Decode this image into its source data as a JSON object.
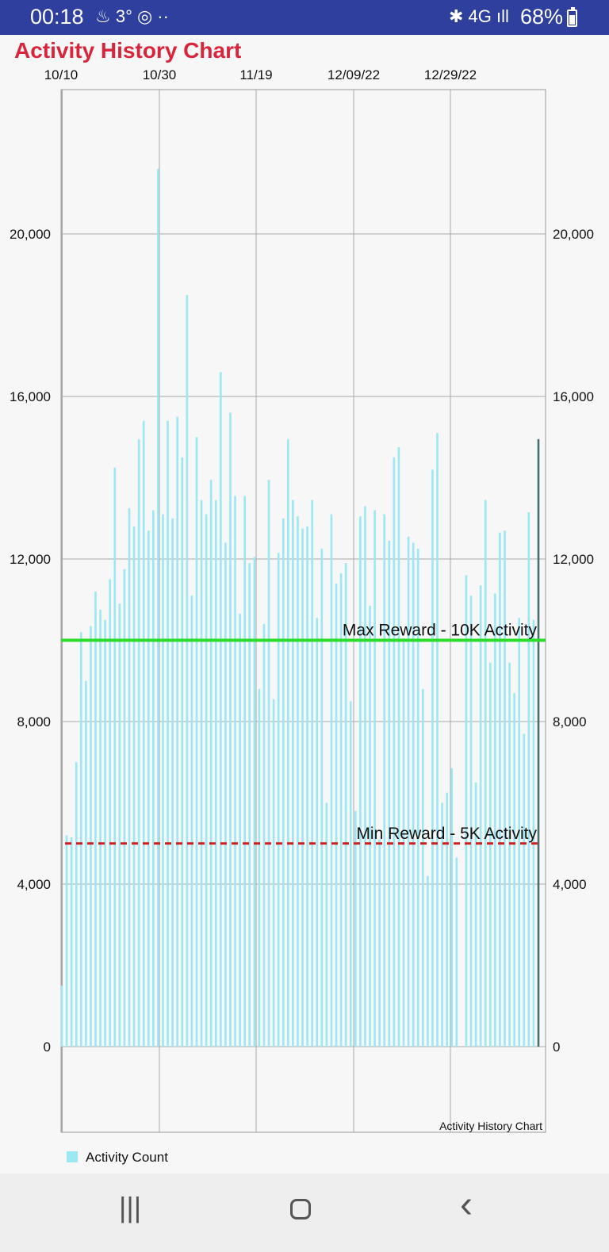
{
  "status_bar": {
    "time": "00:18",
    "left_icons": "♨ 3° ◎ ··",
    "right_icons": "✱ 4G ıll",
    "battery": "68%"
  },
  "app": {
    "title": "Activity History Chart"
  },
  "colors": {
    "bar": "#9be7f2",
    "max_line": "#2ddc2d",
    "min_line": "#cc1f1f",
    "title": "#d8253c",
    "status_bar": "#2e3f9e"
  },
  "chart_data": {
    "type": "bar",
    "title": "Activity History Chart",
    "xlabel": "",
    "ylabel": "",
    "ylim": [
      -2000,
      23700
    ],
    "y_ticks": [
      "0",
      "4,000",
      "8,000",
      "12,000",
      "16,000",
      "20,000"
    ],
    "x_ticks": [
      "10/10",
      "10/30",
      "11/19",
      "12/09/22",
      "12/29/22"
    ],
    "series": [
      {
        "name": "Activity Count",
        "values": [
          1500,
          5200,
          5150,
          7000,
          10200,
          9000,
          10350,
          11200,
          10750,
          10500,
          11500,
          14250,
          10900,
          11750,
          13250,
          12800,
          14950,
          15400,
          12700,
          13200,
          21600,
          13100,
          15400,
          13000,
          15500,
          14500,
          18500,
          11100,
          15000,
          13450,
          13100,
          13950,
          13450,
          16600,
          12400,
          15600,
          13550,
          10650,
          13550,
          11900,
          12050,
          8800,
          10400,
          13950,
          8550,
          12150,
          13000,
          14950,
          13450,
          13050,
          12750,
          12800,
          13450,
          10550,
          12250,
          6000,
          13100,
          11400,
          11650,
          11900,
          8500,
          5800,
          13050,
          13300,
          10850,
          13200,
          5100,
          13100,
          12450,
          14500,
          14750,
          10050,
          12550,
          12400,
          12250,
          8800,
          4200,
          14200,
          15100,
          6000,
          6250,
          6850,
          4650,
          0,
          11600,
          11100,
          6500,
          11350,
          13450,
          9450,
          11150,
          12650,
          12700,
          9450,
          8700,
          10550,
          7700,
          13150,
          10500,
          14950
        ]
      }
    ],
    "reference_lines": [
      {
        "label": "Max Reward - 10K Activity",
        "value": 10000,
        "style": "solid"
      },
      {
        "label": "Min Reward - 5K Activity",
        "value": 5000,
        "style": "dashed"
      }
    ],
    "corner_label": "Activity History Chart",
    "legend": [
      "Activity Count"
    ],
    "legend_position": "bottom-left",
    "grid": true
  },
  "nav": {
    "recent": "|||",
    "back": "‹"
  }
}
